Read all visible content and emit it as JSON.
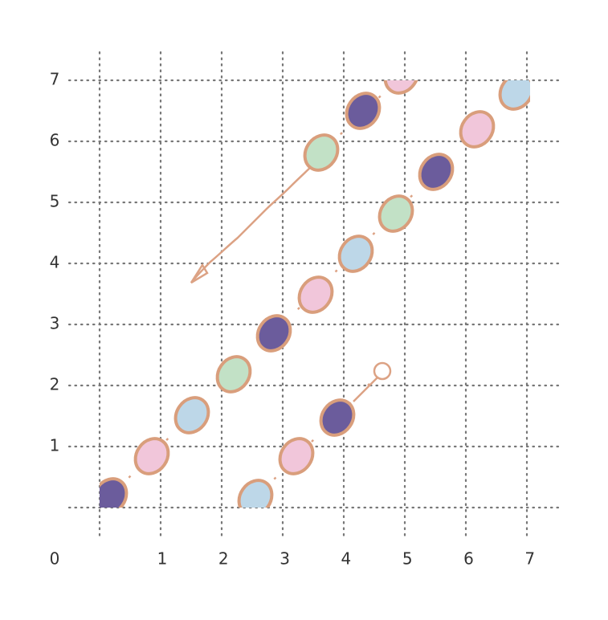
{
  "grid": {
    "origin": "0",
    "y_labels": [
      "7",
      "6",
      "5",
      "4",
      "3",
      "2",
      "1"
    ],
    "x_labels": [
      "1",
      "2",
      "3",
      "4",
      "5",
      "6",
      "7"
    ]
  }
}
